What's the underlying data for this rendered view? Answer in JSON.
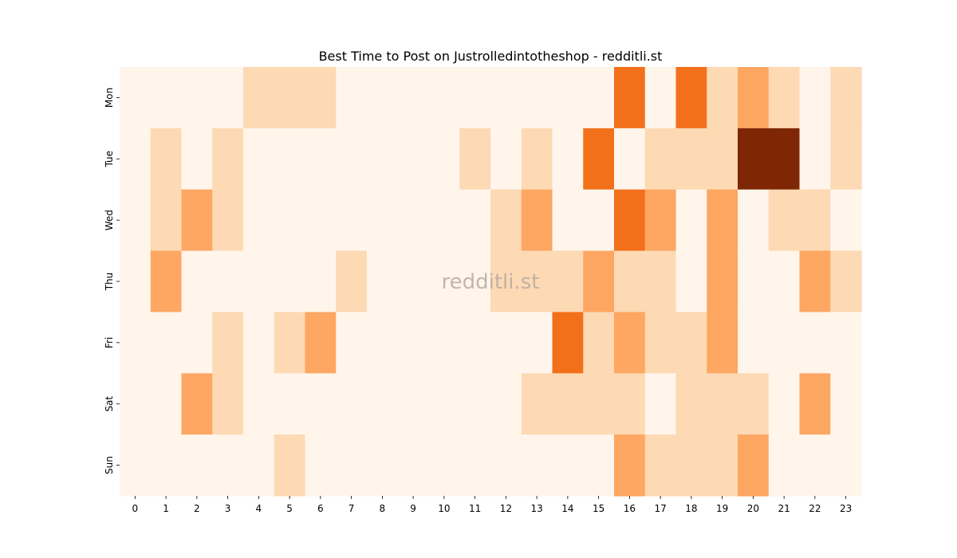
{
  "chart_data": {
    "type": "heatmap",
    "title": "Best Time to Post on Justrolledintotheshop - redditli.st",
    "watermark": "redditli.st",
    "xlabel": "",
    "ylabel": "",
    "x": [
      "0",
      "1",
      "2",
      "3",
      "4",
      "5",
      "6",
      "7",
      "8",
      "9",
      "10",
      "11",
      "12",
      "13",
      "14",
      "15",
      "16",
      "17",
      "18",
      "19",
      "20",
      "21",
      "22",
      "23"
    ],
    "y": [
      "Mon",
      "Tue",
      "Wed",
      "Thu",
      "Fri",
      "Sat",
      "Sun"
    ],
    "values": [
      [
        0,
        0,
        0,
        0,
        1,
        1,
        1,
        0,
        0,
        0,
        0,
        0,
        0,
        0,
        0,
        0,
        3,
        0,
        3,
        1,
        2,
        1,
        0,
        1
      ],
      [
        0,
        1,
        0,
        1,
        0,
        0,
        0,
        0,
        0,
        0,
        0,
        1,
        0,
        1,
        0,
        3,
        0,
        1,
        1,
        1,
        5,
        5,
        0,
        1
      ],
      [
        0,
        1,
        2,
        1,
        0,
        0,
        0,
        0,
        0,
        0,
        0,
        0,
        1,
        2,
        0,
        0,
        3,
        2,
        0,
        2,
        0,
        1,
        1,
        0
      ],
      [
        0,
        2,
        0,
        0,
        0,
        0,
        0,
        1,
        0,
        0,
        0,
        0,
        1,
        1,
        1,
        2,
        1,
        1,
        0,
        2,
        0,
        0,
        2,
        1
      ],
      [
        0,
        0,
        0,
        1,
        0,
        1,
        2,
        0,
        0,
        0,
        0,
        0,
        0,
        0,
        3,
        1,
        2,
        1,
        1,
        2,
        0,
        0,
        0,
        0
      ],
      [
        0,
        0,
        2,
        1,
        0,
        0,
        0,
        0,
        0,
        0,
        0,
        0,
        0,
        1,
        1,
        1,
        1,
        0,
        1,
        1,
        1,
        0,
        2,
        0
      ],
      [
        0,
        0,
        0,
        0,
        0,
        1,
        0,
        0,
        0,
        0,
        0,
        0,
        0,
        0,
        0,
        0,
        2,
        1,
        1,
        1,
        2,
        0,
        0,
        0
      ]
    ],
    "colormap": [
      "#fff5eb",
      "#fdd9b4",
      "#fda762",
      "#f3701b",
      "#c04701",
      "#7f2704"
    ],
    "grid": false,
    "legend": "none"
  }
}
